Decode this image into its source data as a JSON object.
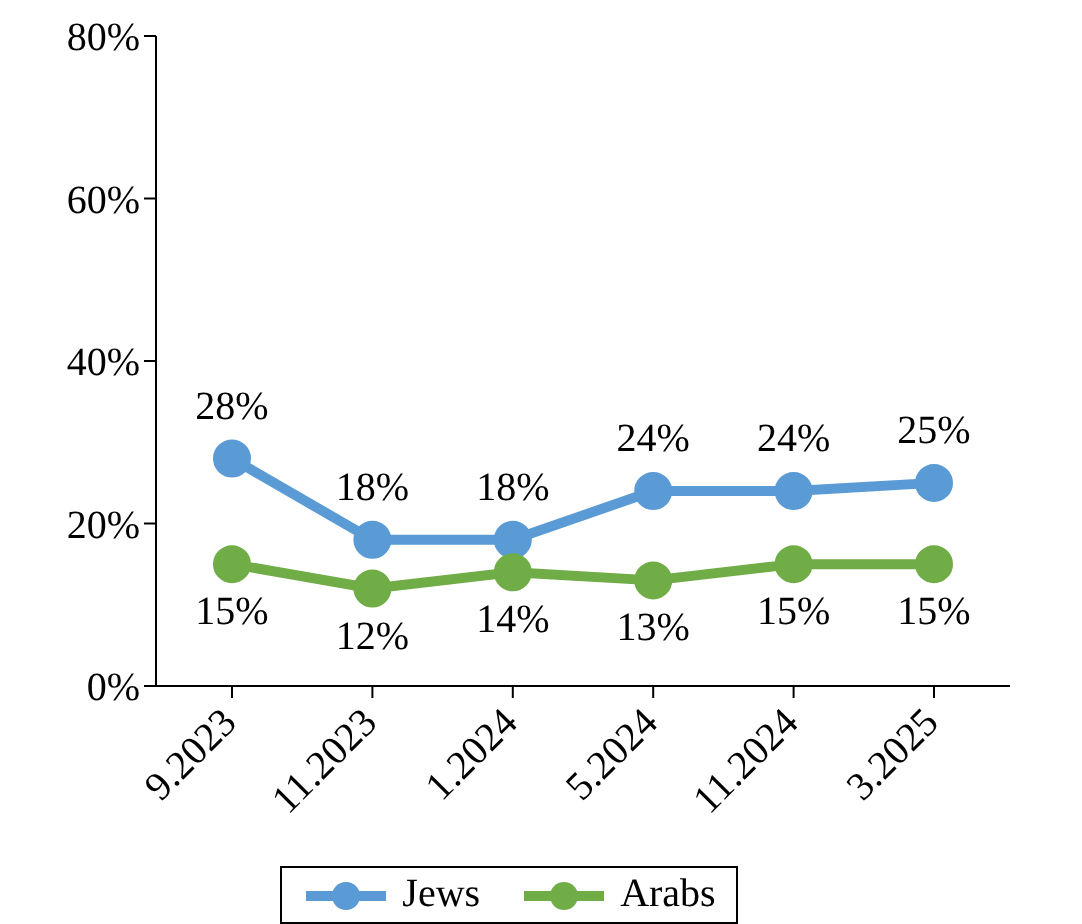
{
  "chart_data": {
    "type": "line",
    "categories": [
      "9.2023",
      "11.2023",
      "1.2024",
      "5.2024",
      "11.2024",
      "3.2025"
    ],
    "series": [
      {
        "name": "Jews",
        "color": "#5b9bd5",
        "values": [
          28,
          18,
          18,
          24,
          24,
          25
        ],
        "value_labels": [
          "28%",
          "18%",
          "18%",
          "24%",
          "24%",
          "25%"
        ]
      },
      {
        "name": "Arabs",
        "color": "#70ad47",
        "values": [
          15,
          12,
          14,
          13,
          15,
          15
        ],
        "value_labels": [
          "15%",
          "12%",
          "14%",
          "13%",
          "15%",
          "15%"
        ]
      }
    ],
    "ylim": [
      0,
      80
    ],
    "yticks": [
      {
        "value": 0,
        "label": "0%"
      },
      {
        "value": 20,
        "label": "20%"
      },
      {
        "value": 40,
        "label": "40%"
      },
      {
        "value": 60,
        "label": "60%"
      },
      {
        "value": 80,
        "label": "80%"
      }
    ],
    "grid": false,
    "legend": "bottom",
    "marker": "circle",
    "line_style": "solid"
  }
}
